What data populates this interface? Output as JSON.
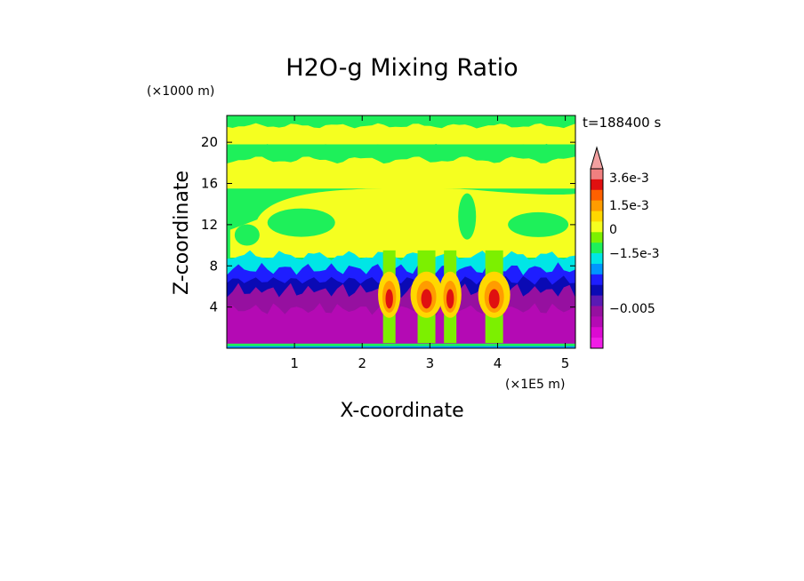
{
  "chart_data": {
    "type": "heatmap",
    "title": "H2O-g Mixing Ratio",
    "xlabel": "X-coordinate",
    "ylabel": "Z-coordinate",
    "x_unit": "(×1E5 m)",
    "y_unit": "(×1000 m)",
    "time_label": "t=188400  s",
    "xlim": [
      0,
      5.15
    ],
    "ylim": [
      0,
      22.6
    ],
    "x_ticks": [
      "1",
      "2",
      "3",
      "4",
      "5"
    ],
    "x_tick_values": [
      1,
      2,
      3,
      4,
      5
    ],
    "y_ticks": [
      "4",
      "8",
      "12",
      "16",
      "20"
    ],
    "y_tick_values": [
      4,
      8,
      12,
      16,
      20
    ],
    "colorbar": {
      "colors_top_to_bottom": [
        "#f2a0a0",
        "#f08080",
        "#e01010",
        "#ff6000",
        "#ff9c00",
        "#ffd800",
        "#f5ff20",
        "#7cf000",
        "#1ef05a",
        "#00e6e6",
        "#0096ff",
        "#1e1eff",
        "#0a0ab4",
        "#5a1ab4",
        "#9610a0",
        "#b40ab4",
        "#dc0ad2",
        "#f01ee6"
      ],
      "labels": [
        {
          "text": "3.6e-3",
          "value": 0.0036
        },
        {
          "text": "1.5e-3",
          "value": 0.0015
        },
        {
          "text": "0",
          "value": 0
        },
        {
          "text": "−1.5e-3",
          "value": -0.0015
        },
        {
          "text": "−0.005",
          "value": -0.005
        }
      ]
    },
    "field_regions": {
      "background": "#1ef05a",
      "upper_bands_yellow_z": [
        [
          19.8,
          21.6
        ],
        [
          15.5,
          18.3
        ]
      ],
      "anvil_yellow_z": [
        9.0,
        15.5
      ],
      "cyan_band_z": [
        7.0,
        9.0
      ],
      "blue_band_z": [
        5.0,
        7.5
      ],
      "purple_low_z": [
        0.4,
        5.5
      ],
      "surface_strip_z": [
        0.0,
        0.4
      ],
      "convective_cores_x": [
        2.4,
        2.95,
        3.3,
        3.95
      ]
    }
  }
}
